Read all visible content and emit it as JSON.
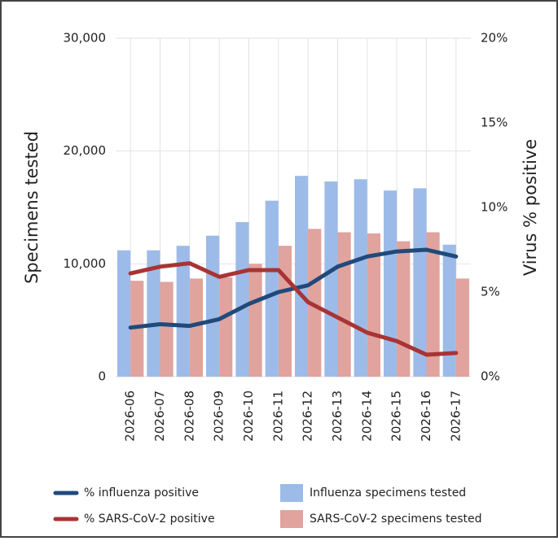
{
  "chart_data": {
    "type": "bar-line",
    "ylabel": "Specimens tested",
    "y2label": "Virus % positive",
    "categories": [
      "2026-06",
      "2026-07",
      "2026-08",
      "2026-09",
      "2026-10",
      "2026-11",
      "2026-12",
      "2026-13",
      "2026-14",
      "2026-15",
      "2026-16",
      "2026-17"
    ],
    "ylim": [
      0,
      30000
    ],
    "yticks": [
      0,
      {
        "value": 10000,
        "label": "10,000"
      },
      {
        "value": 20000,
        "label": "20,000"
      },
      {
        "value": 30000,
        "label": "30,000"
      }
    ],
    "y2lim": [
      0,
      20
    ],
    "y2ticks": [
      {
        "value": 0,
        "label": "0%"
      },
      {
        "value": 5,
        "label": "5%"
      },
      {
        "value": 10,
        "label": "10%"
      },
      {
        "value": 15,
        "label": "15%"
      },
      {
        "value": 20,
        "label": "20%"
      }
    ],
    "grid": true,
    "series": [
      {
        "name": "Influenza specimens tested",
        "type": "bar",
        "color": "#9dbbe8",
        "values": [
          11200,
          11200,
          11600,
          12500,
          13700,
          15600,
          17800,
          17300,
          17500,
          16500,
          16700,
          11700
        ]
      },
      {
        "name": "SARS-CoV-2 specimens tested",
        "type": "bar",
        "color": "#e0a39e",
        "values": [
          8500,
          8400,
          8700,
          8800,
          10000,
          11600,
          13100,
          12800,
          12700,
          12000,
          12800,
          8700
        ]
      },
      {
        "name": "% influenza positive",
        "type": "line",
        "axis": "y2",
        "color": "#1f4a7a",
        "values": [
          2.9,
          3.1,
          3.0,
          3.4,
          4.3,
          5.0,
          5.4,
          6.5,
          7.1,
          7.4,
          7.5,
          7.1
        ]
      },
      {
        "name": "% SARS-CoV-2 positive",
        "type": "line",
        "axis": "y2",
        "color": "#a83434",
        "values": [
          6.1,
          6.5,
          6.7,
          5.9,
          6.3,
          6.3,
          4.4,
          3.5,
          2.6,
          2.1,
          1.3,
          1.4
        ]
      }
    ]
  }
}
